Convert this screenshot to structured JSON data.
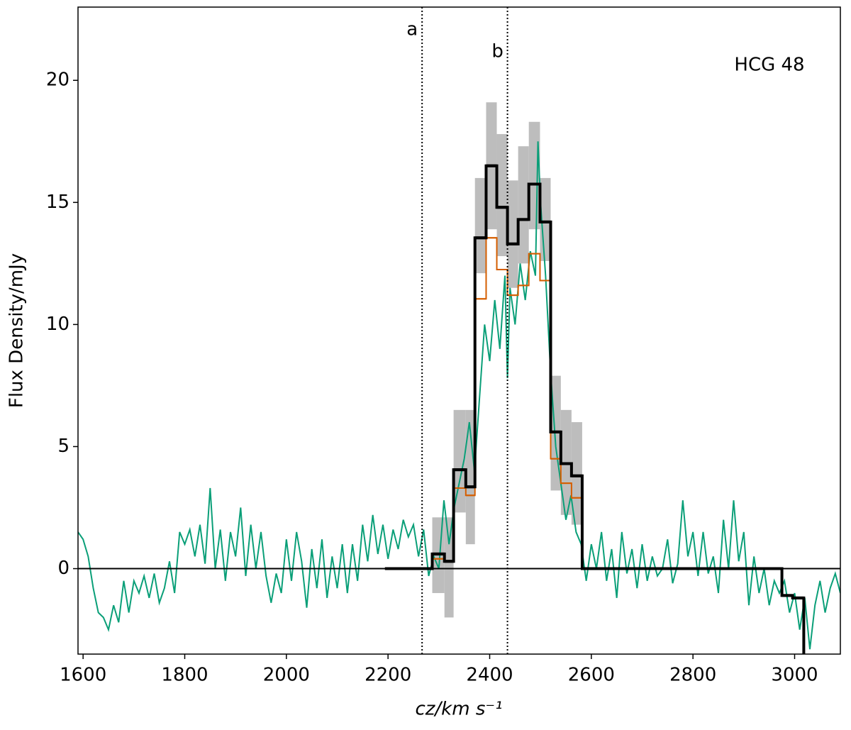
{
  "chart_data": {
    "type": "line",
    "annotation": "HCG 48",
    "xlabel": "cz/km s⁻¹",
    "ylabel": "Flux Density/mJy",
    "xlim": [
      1590,
      3090
    ],
    "ylim": [
      -3.5,
      23
    ],
    "xticks": [
      1600,
      1800,
      2000,
      2200,
      2400,
      2600,
      2800,
      3000
    ],
    "yticks": [
      0,
      5,
      10,
      15,
      20
    ],
    "hline": 0,
    "vlines": [
      {
        "x": 2267,
        "label": "a"
      },
      {
        "x": 2435,
        "label": "b"
      }
    ],
    "error_band": {
      "color": "#bdbdbd",
      "bins": [
        2287,
        2311,
        2329,
        2353,
        2371,
        2393,
        2414,
        2435,
        2456,
        2477,
        2499,
        2520,
        2540,
        2561,
        2582
      ],
      "lower": [
        -1.0,
        -2.0,
        2.3,
        1.0,
        12.1,
        13.9,
        12.8,
        11.5,
        12.5,
        13.9,
        12.6,
        3.2,
        2.2,
        1.8
      ],
      "upper": [
        2.1,
        2.1,
        6.5,
        6.5,
        16.0,
        19.1,
        17.8,
        15.9,
        17.3,
        18.3,
        16.0,
        7.9,
        6.5,
        6.0
      ]
    },
    "spectrum": {
      "color": "#0a9f78",
      "x": [
        1590,
        1600,
        1610,
        1620,
        1630,
        1640,
        1650,
        1660,
        1670,
        1680,
        1690,
        1700,
        1710,
        1720,
        1730,
        1740,
        1750,
        1760,
        1770,
        1780,
        1790,
        1800,
        1810,
        1820,
        1830,
        1840,
        1850,
        1860,
        1870,
        1880,
        1890,
        1900,
        1910,
        1920,
        1930,
        1940,
        1950,
        1960,
        1970,
        1980,
        1990,
        2000,
        2010,
        2020,
        2030,
        2040,
        2050,
        2060,
        2070,
        2080,
        2090,
        2100,
        2110,
        2120,
        2130,
        2140,
        2150,
        2160,
        2170,
        2180,
        2190,
        2200,
        2210,
        2220,
        2230,
        2240,
        2250,
        2260,
        2270,
        2280,
        2290,
        2300,
        2310,
        2320,
        2330,
        2340,
        2350,
        2360,
        2370,
        2380,
        2390,
        2400,
        2410,
        2420,
        2430,
        2435,
        2440,
        2450,
        2460,
        2470,
        2480,
        2490,
        2495,
        2500,
        2505,
        2510,
        2520,
        2530,
        2540,
        2550,
        2560,
        2570,
        2580,
        2590,
        2600,
        2610,
        2620,
        2630,
        2640,
        2650,
        2660,
        2670,
        2680,
        2690,
        2700,
        2710,
        2720,
        2730,
        2740,
        2750,
        2760,
        2770,
        2780,
        2790,
        2800,
        2810,
        2820,
        2830,
        2840,
        2850,
        2860,
        2870,
        2880,
        2890,
        2900,
        2910,
        2920,
        2930,
        2940,
        2950,
        2960,
        2970,
        2980,
        2990,
        3000,
        3010,
        3020,
        3030,
        3040,
        3050,
        3060,
        3070,
        3080,
        3090
      ],
      "values": [
        1.5,
        1.2,
        0.5,
        -0.8,
        -1.8,
        -2.0,
        -2.5,
        -1.5,
        -2.2,
        -0.5,
        -1.8,
        -0.5,
        -1.0,
        -0.3,
        -1.2,
        -0.2,
        -1.4,
        -0.8,
        0.3,
        -1.0,
        1.5,
        1.0,
        1.6,
        0.5,
        1.8,
        0.2,
        3.3,
        0.0,
        1.6,
        -0.5,
        1.5,
        0.5,
        2.5,
        -0.3,
        1.8,
        0.0,
        1.5,
        -0.3,
        -1.4,
        -0.2,
        -1.0,
        1.2,
        -0.5,
        1.5,
        0.3,
        -1.6,
        0.8,
        -0.8,
        1.2,
        -1.2,
        0.5,
        -0.8,
        1.0,
        -1.0,
        1.0,
        -0.5,
        1.8,
        0.3,
        2.2,
        0.6,
        1.8,
        0.4,
        1.6,
        0.8,
        2.0,
        1.3,
        1.8,
        0.5,
        1.6,
        -0.3,
        0.5,
        0.0,
        2.8,
        1.0,
        2.5,
        3.5,
        4.5,
        6.0,
        4.0,
        7.0,
        10.0,
        8.5,
        11.0,
        9.0,
        12.0,
        7.8,
        11.5,
        10.0,
        12.5,
        11.0,
        13.0,
        12.0,
        17.5,
        15.0,
        13.5,
        12.0,
        8.0,
        5.0,
        3.5,
        2.0,
        3.0,
        1.5,
        1.0,
        -0.5,
        1.0,
        0.0,
        1.5,
        -0.5,
        0.8,
        -1.2,
        1.5,
        -0.2,
        0.8,
        -0.8,
        1.0,
        -0.5,
        0.5,
        -0.3,
        0.0,
        1.2,
        -0.6,
        0.2,
        2.8,
        0.5,
        1.5,
        -0.3,
        1.5,
        -0.2,
        0.5,
        -1.0,
        2.0,
        0.0,
        2.8,
        0.3,
        1.5,
        -1.5,
        0.5,
        -1.0,
        0.0,
        -1.5,
        -0.5,
        -1.0,
        -0.5,
        -1.8,
        -1.0,
        -2.5,
        -1.2,
        -3.3,
        -1.5,
        -0.5,
        -1.8,
        -0.8,
        -0.2,
        -1.0
      ]
    },
    "model": {
      "color": "#d55e00",
      "bins": [
        2287,
        2311,
        2329,
        2353,
        2371,
        2393,
        2414,
        2435,
        2456,
        2477,
        2499,
        2520,
        2540,
        2561,
        2582
      ],
      "values": [
        0.4,
        0.3,
        3.3,
        3.0,
        11.05,
        13.55,
        12.25,
        11.2,
        11.6,
        12.9,
        11.8,
        4.5,
        3.5,
        2.9
      ]
    },
    "histogram": {
      "color": "#000000",
      "bins": [
        2194,
        2287,
        2311,
        2329,
        2353,
        2371,
        2393,
        2414,
        2435,
        2456,
        2477,
        2499,
        2520,
        2540,
        2561,
        2582,
        2975,
        2996,
        3018,
        3040
      ],
      "values": [
        0,
        0.6,
        0.3,
        4.05,
        3.35,
        13.55,
        16.5,
        14.8,
        13.3,
        14.3,
        15.75,
        14.2,
        5.6,
        4.3,
        3.8,
        0,
        -1.1,
        -1.2,
        -4
      ]
    }
  }
}
